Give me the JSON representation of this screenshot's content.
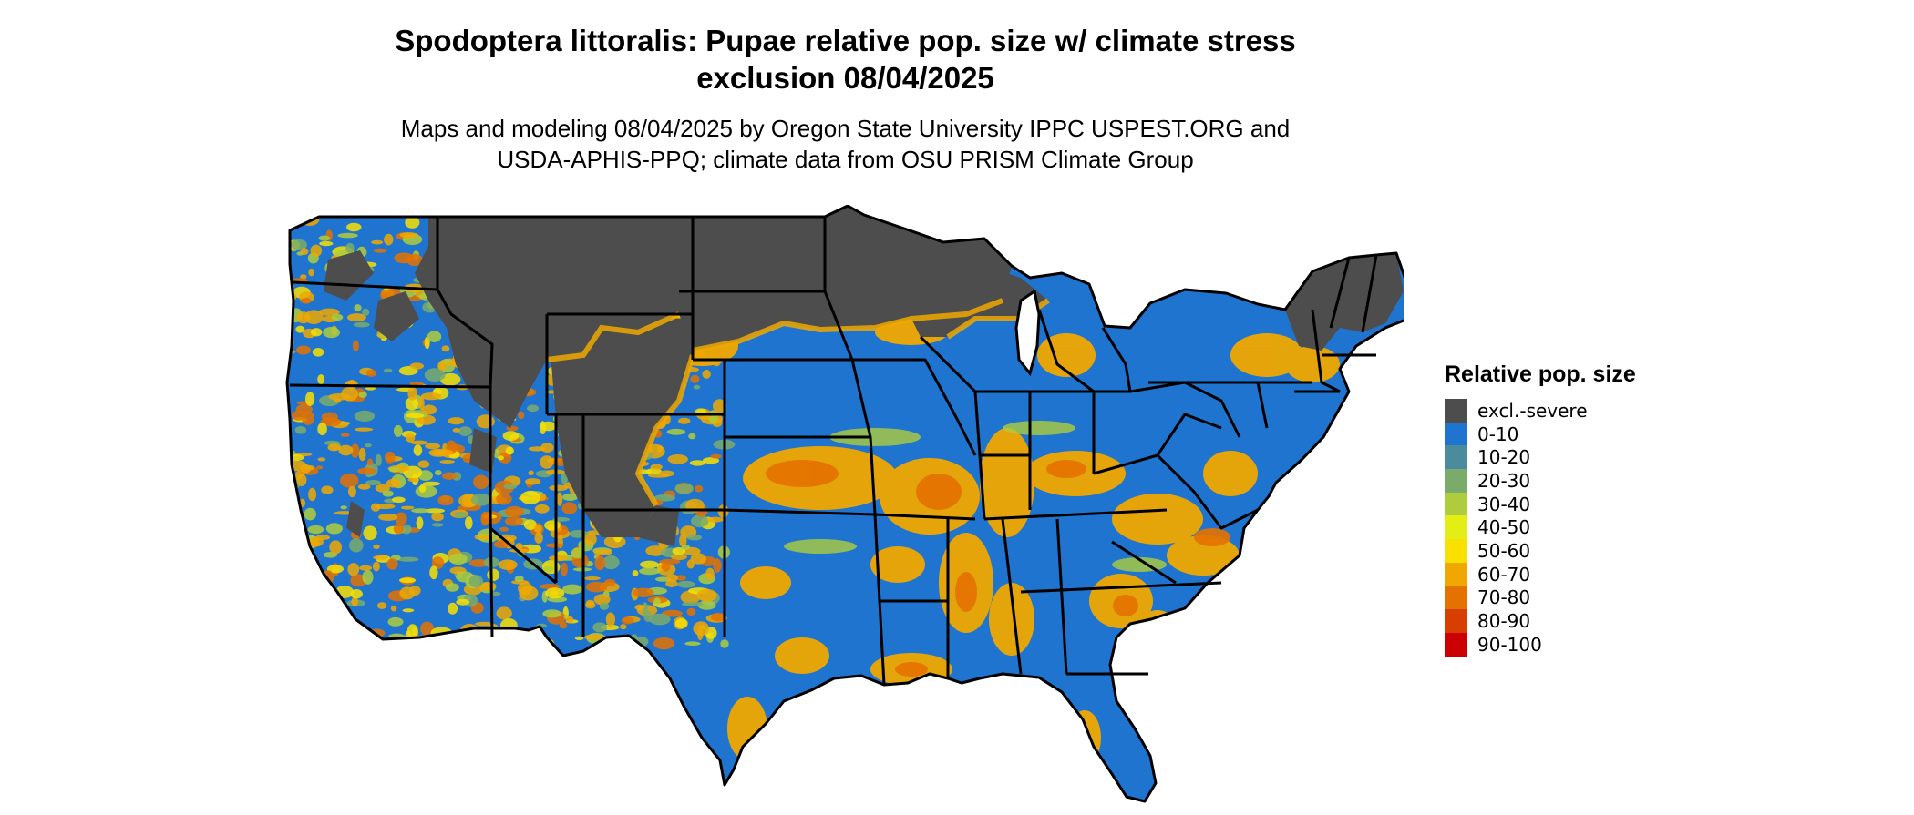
{
  "title": {
    "line1": "Spodoptera littoralis: Pupae relative pop. size w/ climate stress",
    "line2": "exclusion 08/04/2025"
  },
  "subtitle": {
    "line1": "Maps and modeling 08/04/2025 by Oregon State University IPPC USPEST.ORG and",
    "line2": "USDA-APHIS-PPQ; climate data from OSU PRISM Climate Group"
  },
  "legend": {
    "title": "Relative pop. size",
    "items": [
      {
        "label": "excl.-severe",
        "color": "#4d4d4d"
      },
      {
        "label": "0-10",
        "color": "#1f74d0"
      },
      {
        "label": "10-20",
        "color": "#4a8c9e"
      },
      {
        "label": "20-30",
        "color": "#7aab6b"
      },
      {
        "label": "30-40",
        "color": "#aecc3c"
      },
      {
        "label": "40-50",
        "color": "#e2ee16"
      },
      {
        "label": "50-60",
        "color": "#f8e000"
      },
      {
        "label": "60-70",
        "color": "#f0a800"
      },
      {
        "label": "70-80",
        "color": "#e47200"
      },
      {
        "label": "80-90",
        "color": "#d83e00"
      },
      {
        "label": "90-100",
        "color": "#cc0000"
      }
    ]
  },
  "map": {
    "region": "Contiguous United States",
    "colors": {
      "border": "#000000",
      "excluded": "#4d4d4d",
      "low": "#1f74d0",
      "mid": "#f0a800",
      "high": "#e47200"
    }
  }
}
